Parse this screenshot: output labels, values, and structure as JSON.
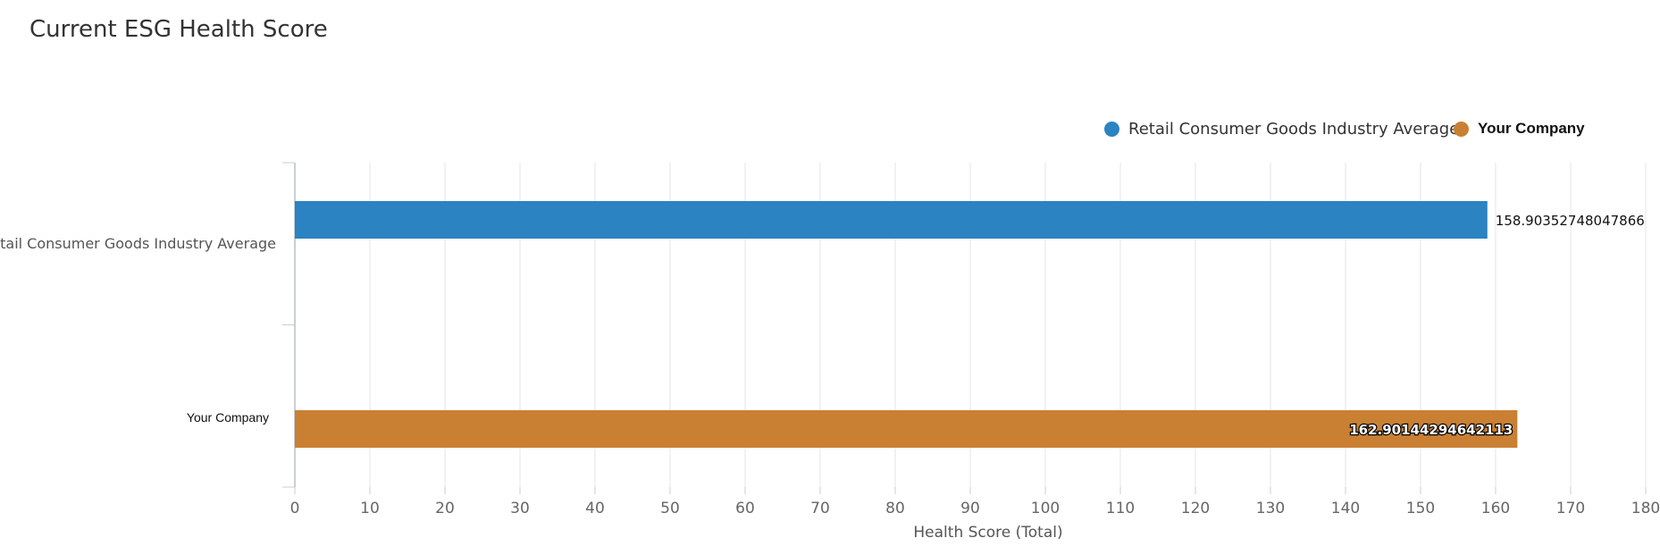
{
  "title": "Current ESG Health Score",
  "legend": [
    {
      "label": "Retail Consumer Goods Industry Average",
      "color": "#2b83c1"
    },
    {
      "label": "Your Company",
      "color": "#ca8033"
    }
  ],
  "chart_data": {
    "type": "bar",
    "orientation": "horizontal",
    "categories": [
      "Retail Consumer Goods Industry Average",
      "Your Company"
    ],
    "series": [
      {
        "name": "Retail Consumer Goods Industry Average",
        "values": [
          158.90352748047866,
          null
        ],
        "color": "#2b83c1"
      },
      {
        "name": "Your Company",
        "values": [
          null,
          162.90144294642113
        ],
        "color": "#ca8033"
      }
    ],
    "data_labels": [
      "158.90352748047866",
      "162.90144294642113"
    ],
    "xlabel": "Health Score (Total)",
    "ylabel": "",
    "xlim": [
      0,
      180
    ],
    "xticks": [
      0,
      10,
      20,
      30,
      40,
      50,
      60,
      70,
      80,
      90,
      100,
      110,
      120,
      130,
      140,
      150,
      160,
      170,
      180
    ],
    "grid": true,
    "legend_position": "top-right"
  }
}
